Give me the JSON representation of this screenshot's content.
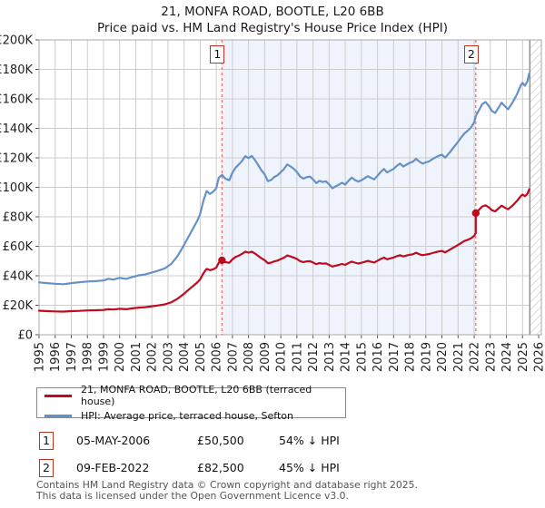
{
  "title": {
    "line1": "21, MONFA ROAD, BOOTLE, L20 6BB",
    "line2": "Price paid vs. HM Land Registry's House Price Index (HPI)"
  },
  "chart_data": {
    "type": "line",
    "title": "21, MONFA ROAD, BOOTLE, L20 6BB — Price paid vs. HM Land Registry's House Price Index (HPI)",
    "xlabel": "",
    "ylabel": "",
    "x_range": [
      1995,
      2026
    ],
    "y_range": [
      0,
      200000
    ],
    "grid": true,
    "legend_position": "bottom-left",
    "y_ticks": [
      "£0",
      "£20K",
      "£40K",
      "£60K",
      "£80K",
      "£100K",
      "£120K",
      "£140K",
      "£160K",
      "£180K",
      "£200K"
    ],
    "x_ticks": [
      "1995",
      "1996",
      "1997",
      "1998",
      "1999",
      "2000",
      "2001",
      "2002",
      "2003",
      "2004",
      "2005",
      "2006",
      "2007",
      "2008",
      "2009",
      "2010",
      "2011",
      "2012",
      "2013",
      "2014",
      "2015",
      "2016",
      "2017",
      "2018",
      "2019",
      "2020",
      "2021",
      "2022",
      "2023",
      "2024",
      "2025",
      "2026"
    ],
    "colors": {
      "price_line": "#c00a1e",
      "hpi_line": "#6691c8",
      "sale_dash": "#f07272",
      "sale_dot": "#c00a1e",
      "shade": "#eff3fb",
      "grid": "#cccccc",
      "frame": "#aaaaaa",
      "tick": "#555555",
      "hatch": "#c0c0c0",
      "hatch_edge": "#777777",
      "axis_text": "#222222"
    },
    "shaded_span": [
      2006.35,
      2022.1
    ],
    "future_hatch_start": 2025.45,
    "sale_points": [
      [
        2006.35,
        50500
      ],
      [
        2022.1,
        82500
      ]
    ],
    "series": [
      {
        "name": "21, MONFA ROAD, BOOTLE, L20 6BB (terraced house)",
        "color": "#c00a1e",
        "points": [
          [
            1995.0,
            16300
          ],
          [
            1995.5,
            16000
          ],
          [
            1996.0,
            15800
          ],
          [
            1996.5,
            15700
          ],
          [
            1997.0,
            16000
          ],
          [
            1997.5,
            16200
          ],
          [
            1998.0,
            16500
          ],
          [
            1998.5,
            16600
          ],
          [
            1999.0,
            16800
          ],
          [
            1999.3,
            17300
          ],
          [
            1999.6,
            17100
          ],
          [
            2000.0,
            17600
          ],
          [
            2000.4,
            17300
          ],
          [
            2000.8,
            17900
          ],
          [
            2001.2,
            18400
          ],
          [
            2001.6,
            18700
          ],
          [
            2002.0,
            19300
          ],
          [
            2002.4,
            19900
          ],
          [
            2002.8,
            20600
          ],
          [
            2003.2,
            22000
          ],
          [
            2003.6,
            24500
          ],
          [
            2004.0,
            27900
          ],
          [
            2004.4,
            31600
          ],
          [
            2004.8,
            35300
          ],
          [
            2005.0,
            37600
          ],
          [
            2005.2,
            41700
          ],
          [
            2005.4,
            44700
          ],
          [
            2005.6,
            43800
          ],
          [
            2005.8,
            44400
          ],
          [
            2006.0,
            45600
          ],
          [
            2006.15,
            48800
          ],
          [
            2006.35,
            50500
          ],
          [
            2006.55,
            49300
          ],
          [
            2006.8,
            48800
          ],
          [
            2007.0,
            51200
          ],
          [
            2007.2,
            52800
          ],
          [
            2007.4,
            53700
          ],
          [
            2007.6,
            54900
          ],
          [
            2007.8,
            56400
          ],
          [
            2008.0,
            55700
          ],
          [
            2008.2,
            56400
          ],
          [
            2008.4,
            55100
          ],
          [
            2008.6,
            53500
          ],
          [
            2008.8,
            51900
          ],
          [
            2009.0,
            50600
          ],
          [
            2009.2,
            48500
          ],
          [
            2009.4,
            48900
          ],
          [
            2009.6,
            49800
          ],
          [
            2009.8,
            50300
          ],
          [
            2010.0,
            51300
          ],
          [
            2010.2,
            52300
          ],
          [
            2010.4,
            53800
          ],
          [
            2010.6,
            53100
          ],
          [
            2010.8,
            52400
          ],
          [
            2011.0,
            51400
          ],
          [
            2011.2,
            49900
          ],
          [
            2011.4,
            49300
          ],
          [
            2011.6,
            49700
          ],
          [
            2011.8,
            49900
          ],
          [
            2012.0,
            49000
          ],
          [
            2012.2,
            47900
          ],
          [
            2012.4,
            48600
          ],
          [
            2012.6,
            48200
          ],
          [
            2012.8,
            48400
          ],
          [
            2013.0,
            47400
          ],
          [
            2013.2,
            46300
          ],
          [
            2013.4,
            46800
          ],
          [
            2013.6,
            47400
          ],
          [
            2013.8,
            48000
          ],
          [
            2014.0,
            47400
          ],
          [
            2014.2,
            48600
          ],
          [
            2014.4,
            49600
          ],
          [
            2014.6,
            48900
          ],
          [
            2014.8,
            48300
          ],
          [
            2015.0,
            48800
          ],
          [
            2015.2,
            49400
          ],
          [
            2015.4,
            50100
          ],
          [
            2015.6,
            49500
          ],
          [
            2015.8,
            49000
          ],
          [
            2016.0,
            50200
          ],
          [
            2016.2,
            51400
          ],
          [
            2016.4,
            52300
          ],
          [
            2016.6,
            51200
          ],
          [
            2016.8,
            51800
          ],
          [
            2017.0,
            52400
          ],
          [
            2017.2,
            53300
          ],
          [
            2017.4,
            54000
          ],
          [
            2017.6,
            53100
          ],
          [
            2017.8,
            53700
          ],
          [
            2018.0,
            54300
          ],
          [
            2018.2,
            54600
          ],
          [
            2018.4,
            55600
          ],
          [
            2018.6,
            54600
          ],
          [
            2018.8,
            54000
          ],
          [
            2019.0,
            54400
          ],
          [
            2019.2,
            54700
          ],
          [
            2019.4,
            55400
          ],
          [
            2019.6,
            56000
          ],
          [
            2019.8,
            56500
          ],
          [
            2020.0,
            56800
          ],
          [
            2020.2,
            55900
          ],
          [
            2020.5,
            57700
          ],
          [
            2020.8,
            59600
          ],
          [
            2021.0,
            60900
          ],
          [
            2021.2,
            62300
          ],
          [
            2021.4,
            63600
          ],
          [
            2021.6,
            64400
          ],
          [
            2021.8,
            65400
          ],
          [
            2022.0,
            67100
          ],
          [
            2022.1,
            69000
          ],
          [
            2022.1,
            82500
          ],
          [
            2022.3,
            84800
          ],
          [
            2022.5,
            87000
          ],
          [
            2022.7,
            87800
          ],
          [
            2022.9,
            86500
          ],
          [
            2023.1,
            84500
          ],
          [
            2023.3,
            83700
          ],
          [
            2023.5,
            85600
          ],
          [
            2023.7,
            87600
          ],
          [
            2023.9,
            86300
          ],
          [
            2024.1,
            85100
          ],
          [
            2024.3,
            86800
          ],
          [
            2024.5,
            89000
          ],
          [
            2024.7,
            91300
          ],
          [
            2024.9,
            94200
          ],
          [
            2025.0,
            95100
          ],
          [
            2025.15,
            94000
          ],
          [
            2025.3,
            95600
          ],
          [
            2025.42,
            98700
          ]
        ]
      },
      {
        "name": "HPI: Average price, terraced house, Sefton",
        "color": "#6691c8",
        "points": [
          [
            1995.0,
            35500
          ],
          [
            1995.5,
            35000
          ],
          [
            1996.0,
            34600
          ],
          [
            1996.5,
            34300
          ],
          [
            1997.0,
            35000
          ],
          [
            1997.5,
            35600
          ],
          [
            1998.0,
            36100
          ],
          [
            1998.5,
            36400
          ],
          [
            1999.0,
            36800
          ],
          [
            1999.3,
            38000
          ],
          [
            1999.6,
            37400
          ],
          [
            2000.0,
            38600
          ],
          [
            2000.4,
            37900
          ],
          [
            2000.8,
            39200
          ],
          [
            2001.2,
            40300
          ],
          [
            2001.6,
            41000
          ],
          [
            2002.0,
            42200
          ],
          [
            2002.4,
            43500
          ],
          [
            2002.8,
            45000
          ],
          [
            2003.2,
            48000
          ],
          [
            2003.6,
            53500
          ],
          [
            2004.0,
            61000
          ],
          [
            2004.4,
            69000
          ],
          [
            2004.8,
            77000
          ],
          [
            2005.0,
            82000
          ],
          [
            2005.2,
            91000
          ],
          [
            2005.4,
            97500
          ],
          [
            2005.6,
            95500
          ],
          [
            2005.8,
            97000
          ],
          [
            2006.0,
            99500
          ],
          [
            2006.15,
            106500
          ],
          [
            2006.35,
            108500
          ],
          [
            2006.55,
            106000
          ],
          [
            2006.8,
            104800
          ],
          [
            2007.0,
            110000
          ],
          [
            2007.2,
            113500
          ],
          [
            2007.4,
            115500
          ],
          [
            2007.6,
            118000
          ],
          [
            2007.8,
            121200
          ],
          [
            2008.0,
            119800
          ],
          [
            2008.2,
            121300
          ],
          [
            2008.4,
            118500
          ],
          [
            2008.6,
            115000
          ],
          [
            2008.8,
            111500
          ],
          [
            2009.0,
            108800
          ],
          [
            2009.2,
            104200
          ],
          [
            2009.4,
            105000
          ],
          [
            2009.6,
            107000
          ],
          [
            2009.8,
            108200
          ],
          [
            2010.0,
            110300
          ],
          [
            2010.2,
            112400
          ],
          [
            2010.4,
            115600
          ],
          [
            2010.6,
            114200
          ],
          [
            2010.8,
            112600
          ],
          [
            2011.0,
            110400
          ],
          [
            2011.2,
            107300
          ],
          [
            2011.4,
            105900
          ],
          [
            2011.6,
            106800
          ],
          [
            2011.8,
            107300
          ],
          [
            2012.0,
            105400
          ],
          [
            2012.2,
            102900
          ],
          [
            2012.4,
            104400
          ],
          [
            2012.6,
            103600
          ],
          [
            2012.8,
            104100
          ],
          [
            2013.0,
            101900
          ],
          [
            2013.2,
            99400
          ],
          [
            2013.4,
            100600
          ],
          [
            2013.6,
            101800
          ],
          [
            2013.8,
            103100
          ],
          [
            2014.0,
            101900
          ],
          [
            2014.2,
            104400
          ],
          [
            2014.4,
            106600
          ],
          [
            2014.6,
            105000
          ],
          [
            2014.8,
            103900
          ],
          [
            2015.0,
            104800
          ],
          [
            2015.2,
            106200
          ],
          [
            2015.4,
            107600
          ],
          [
            2015.6,
            106400
          ],
          [
            2015.8,
            105400
          ],
          [
            2016.0,
            107900
          ],
          [
            2016.2,
            110400
          ],
          [
            2016.4,
            112400
          ],
          [
            2016.6,
            110100
          ],
          [
            2016.8,
            111300
          ],
          [
            2017.0,
            112500
          ],
          [
            2017.2,
            114600
          ],
          [
            2017.4,
            116100
          ],
          [
            2017.6,
            114100
          ],
          [
            2017.8,
            115400
          ],
          [
            2018.0,
            116600
          ],
          [
            2018.2,
            117400
          ],
          [
            2018.4,
            119400
          ],
          [
            2018.6,
            117400
          ],
          [
            2018.8,
            116100
          ],
          [
            2019.0,
            116900
          ],
          [
            2019.2,
            117600
          ],
          [
            2019.4,
            119100
          ],
          [
            2019.6,
            120300
          ],
          [
            2019.8,
            121400
          ],
          [
            2020.0,
            122100
          ],
          [
            2020.2,
            120100
          ],
          [
            2020.5,
            123900
          ],
          [
            2020.8,
            128100
          ],
          [
            2021.0,
            130900
          ],
          [
            2021.2,
            133900
          ],
          [
            2021.4,
            136600
          ],
          [
            2021.6,
            138400
          ],
          [
            2021.8,
            140600
          ],
          [
            2022.0,
            144100
          ],
          [
            2022.1,
            148300
          ],
          [
            2022.3,
            152400
          ],
          [
            2022.5,
            156400
          ],
          [
            2022.7,
            157900
          ],
          [
            2022.9,
            155400
          ],
          [
            2023.1,
            151900
          ],
          [
            2023.3,
            150400
          ],
          [
            2023.5,
            153900
          ],
          [
            2023.7,
            157400
          ],
          [
            2023.9,
            155100
          ],
          [
            2024.1,
            152900
          ],
          [
            2024.3,
            156100
          ],
          [
            2024.5,
            159900
          ],
          [
            2024.7,
            164100
          ],
          [
            2024.9,
            169400
          ],
          [
            2025.0,
            170900
          ],
          [
            2025.15,
            168900
          ],
          [
            2025.3,
            171900
          ],
          [
            2025.42,
            177500
          ]
        ]
      }
    ]
  },
  "sale_markers": [
    {
      "label": "1",
      "year": 2006.35
    },
    {
      "label": "2",
      "year": 2022.1
    }
  ],
  "legend": [
    {
      "label": "21, MONFA ROAD, BOOTLE, L20 6BB (terraced house)",
      "color": "#c00a1e"
    },
    {
      "label": "HPI: Average price, terraced house, Sefton",
      "color": "#6691c8"
    }
  ],
  "transactions": [
    {
      "marker": "1",
      "date": "05-MAY-2006",
      "price": "£50,500",
      "vs_hpi": "54% ↓ HPI"
    },
    {
      "marker": "2",
      "date": "09-FEB-2022",
      "price": "£82,500",
      "vs_hpi": "45% ↓ HPI"
    }
  ],
  "footer": {
    "line1": "Contains HM Land Registry data © Crown copyright and database right 2025.",
    "line2": "This data is licensed under the Open Government Licence v3.0."
  }
}
